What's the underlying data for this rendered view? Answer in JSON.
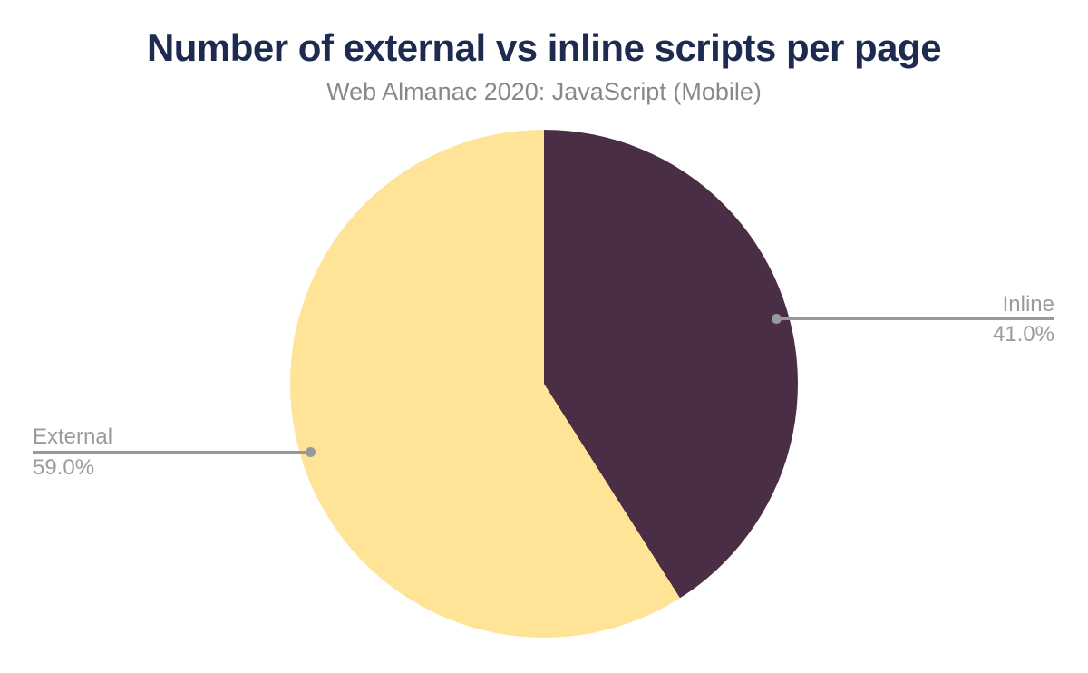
{
  "chart_data": {
    "type": "pie",
    "title": "Number of external vs inline scripts per page",
    "subtitle": "Web Almanac 2020: JavaScript (Mobile)",
    "start_angle_deg": 0,
    "direction": "clockwise",
    "legend_position": "none",
    "label_style": "outside-with-connector",
    "slices": [
      {
        "label": "Inline",
        "value": 41.0,
        "display_value": "41.0%",
        "color": "#4a2e46"
      },
      {
        "label": "External",
        "value": 59.0,
        "display_value": "59.0%",
        "color": "#ffe396"
      }
    ],
    "colors": {
      "title_text": "#1e2b50",
      "subtitle_text": "#86898c",
      "data_label_text": "#9b9b9b",
      "connector_line": "#97999c",
      "connector_dot": "#97999c",
      "background": "#ffffff"
    }
  }
}
